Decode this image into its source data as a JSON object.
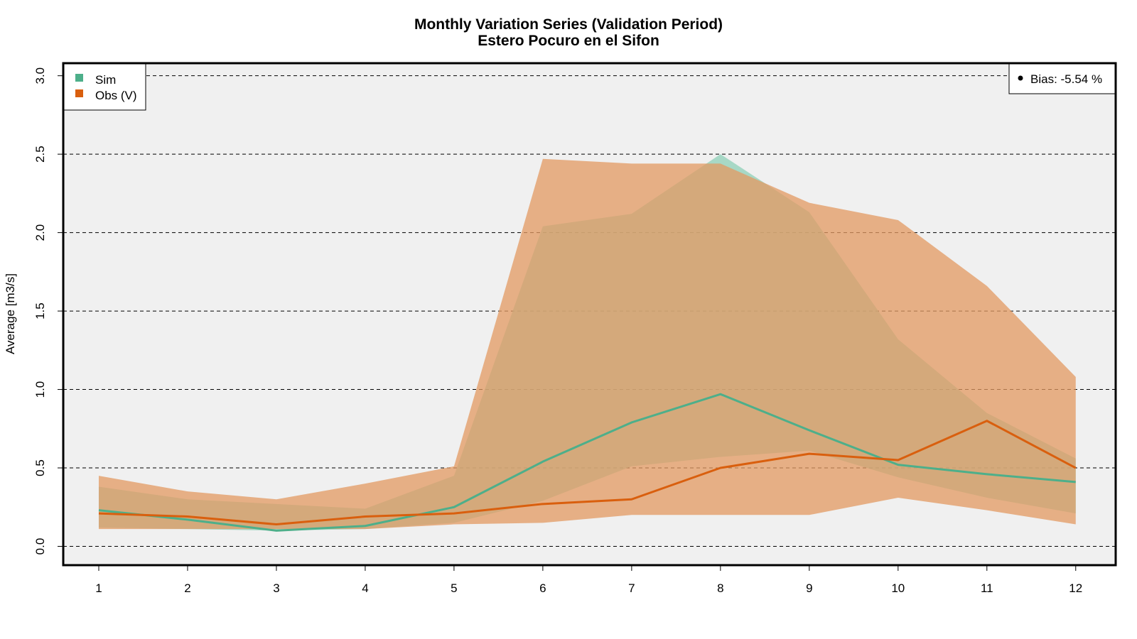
{
  "chart_data": {
    "type": "area",
    "title": "Monthly Variation Series (Validation Period)",
    "subtitle": "Estero Pocuro en el Sifon",
    "xlabel": "",
    "ylabel": "Average [m3/s]",
    "x": [
      1,
      2,
      3,
      4,
      5,
      6,
      7,
      8,
      9,
      10,
      11,
      12
    ],
    "x_tick_labels": [
      "1",
      "2",
      "3",
      "4",
      "5",
      "6",
      "7",
      "8",
      "9",
      "10",
      "11",
      "12"
    ],
    "xlim": [
      0.6,
      12.45
    ],
    "ylim": [
      -0.12,
      3.08
    ],
    "y_ticks": [
      0.0,
      0.5,
      1.0,
      1.5,
      2.0,
      2.5,
      3.0
    ],
    "y_tick_labels": [
      "0.0",
      "0.5",
      "1.0",
      "1.5",
      "2.0",
      "2.5",
      "3.0"
    ],
    "grid": "horizontal dashed at y ticks",
    "background": "#f0f0f0",
    "series": [
      {
        "name": "Sim",
        "color": "#4daf8a",
        "band_color": "#8fd0b8",
        "mean": [
          0.23,
          0.17,
          0.1,
          0.13,
          0.25,
          0.54,
          0.79,
          0.97,
          0.74,
          0.52,
          0.46,
          0.41
        ],
        "min": [
          0.12,
          0.11,
          0.1,
          0.11,
          0.15,
          0.29,
          0.51,
          0.57,
          0.61,
          0.44,
          0.31,
          0.21
        ],
        "max": [
          0.38,
          0.3,
          0.27,
          0.24,
          0.45,
          2.04,
          2.12,
          2.5,
          2.13,
          1.32,
          0.85,
          0.56
        ]
      },
      {
        "name": "Obs (V)",
        "color": "#d95f0e",
        "band_color": "#e39a62",
        "mean": [
          0.21,
          0.19,
          0.14,
          0.19,
          0.21,
          0.27,
          0.3,
          0.5,
          0.59,
          0.55,
          0.8,
          0.5
        ],
        "min": [
          0.11,
          0.11,
          0.11,
          0.11,
          0.14,
          0.15,
          0.2,
          0.2,
          0.2,
          0.31,
          0.23,
          0.14
        ],
        "max": [
          0.45,
          0.35,
          0.3,
          0.4,
          0.51,
          2.47,
          2.44,
          2.44,
          2.19,
          2.08,
          1.66,
          1.08
        ]
      }
    ],
    "legend": {
      "position": "top-left",
      "entries": [
        "Sim",
        "Obs (V)"
      ]
    },
    "annotation": {
      "position": "top-right",
      "text": "Bias: -5.54 %"
    }
  }
}
